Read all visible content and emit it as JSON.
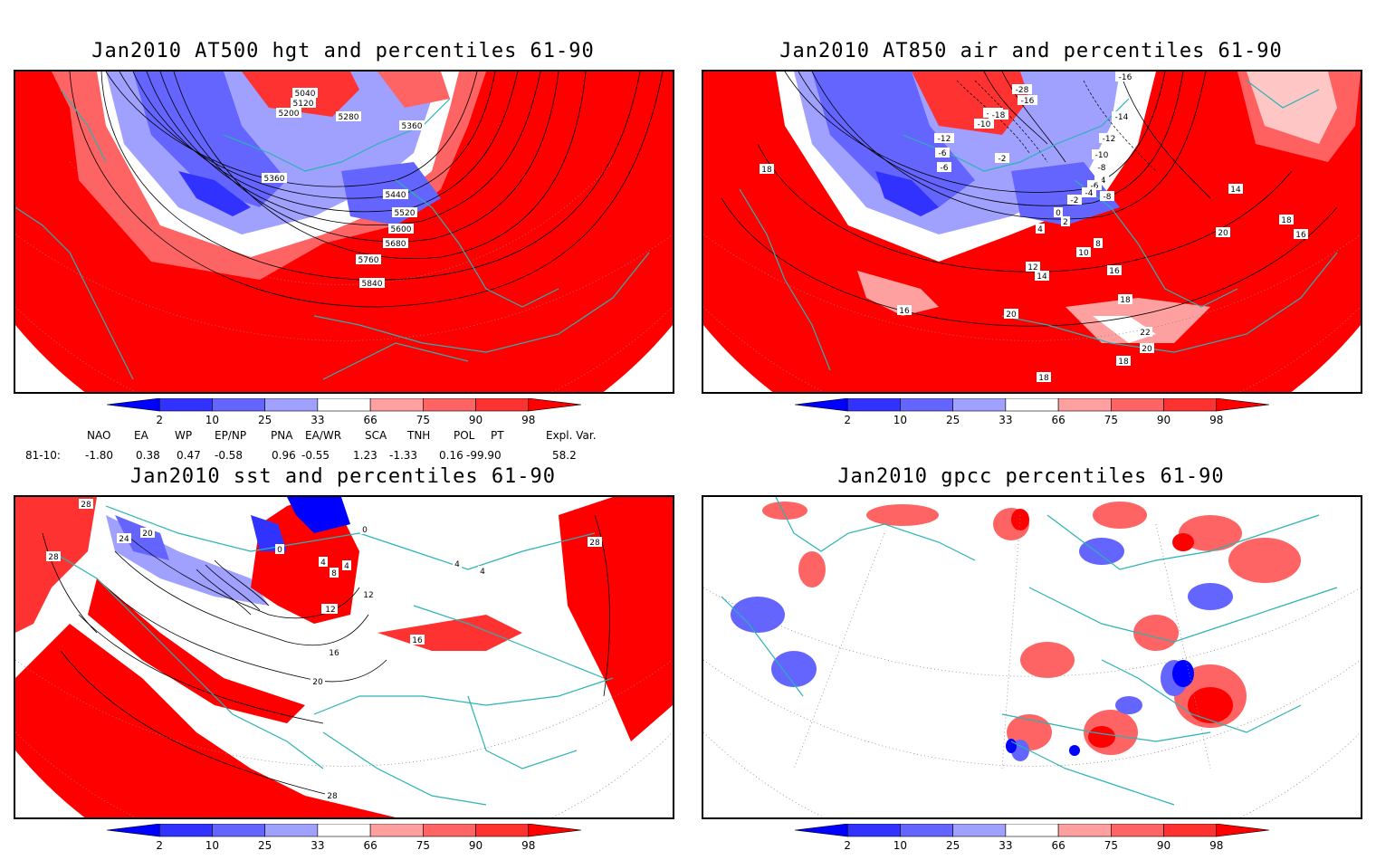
{
  "panels": [
    {
      "title": "Jan2010 AT500 hgt and percentiles 61-90",
      "contour_labels": [
        "5040",
        "5120",
        "5200",
        "5280",
        "5360",
        "5360",
        "5440",
        "5520",
        "5600",
        "5680",
        "5760",
        "5840"
      ]
    },
    {
      "title": "Jan2010 AT850 air and percentiles 61-90",
      "contour_labels": [
        "-16",
        "-28",
        "-16",
        "-14",
        "-18",
        "-14",
        "-12",
        "-12",
        "-10",
        "-10",
        "-8",
        "-6",
        "-6",
        "-4",
        "-2",
        "-8",
        "-6",
        "-4",
        "-2",
        "0",
        "2",
        "4",
        "14",
        "16",
        "18",
        "18",
        "20",
        "8",
        "10",
        "12",
        "14",
        "16",
        "16",
        "18",
        "20",
        "22",
        "20",
        "18",
        "18"
      ]
    },
    {
      "title": "Jan2010 sst and percentiles 61-90",
      "contour_labels": [
        "28",
        "28",
        "24",
        "20",
        "0",
        "0",
        "4",
        "8",
        "4",
        "12",
        "4",
        "4",
        "12",
        "16",
        "16",
        "20",
        "28",
        "28",
        "12"
      ]
    },
    {
      "title": "Jan2010 gpcc percentiles 61-90",
      "contour_labels": []
    }
  ],
  "colorbar": {
    "labels": [
      "2",
      "10",
      "25",
      "33",
      "66",
      "75",
      "90",
      "98"
    ],
    "colors": [
      "#0000ff",
      "#3232ff",
      "#6464ff",
      "#a0a0ff",
      "#ffffff",
      "#ffa0a0",
      "#ff6464",
      "#ff3232",
      "#ff0000"
    ]
  },
  "indices": {
    "headers": [
      "NAO",
      "EA",
      "WP",
      "EP/NP",
      "PNA",
      "EA/WR",
      "SCA",
      "TNH",
      "POL",
      "PT",
      "Expl. Var."
    ],
    "row_label": "81-10:",
    "values": [
      "-1.80",
      "0.38",
      "0.47",
      "-0.58",
      "0.96",
      "-0.55",
      "1.23",
      "-1.33",
      "0.16",
      "-99.90",
      "58.2"
    ]
  }
}
